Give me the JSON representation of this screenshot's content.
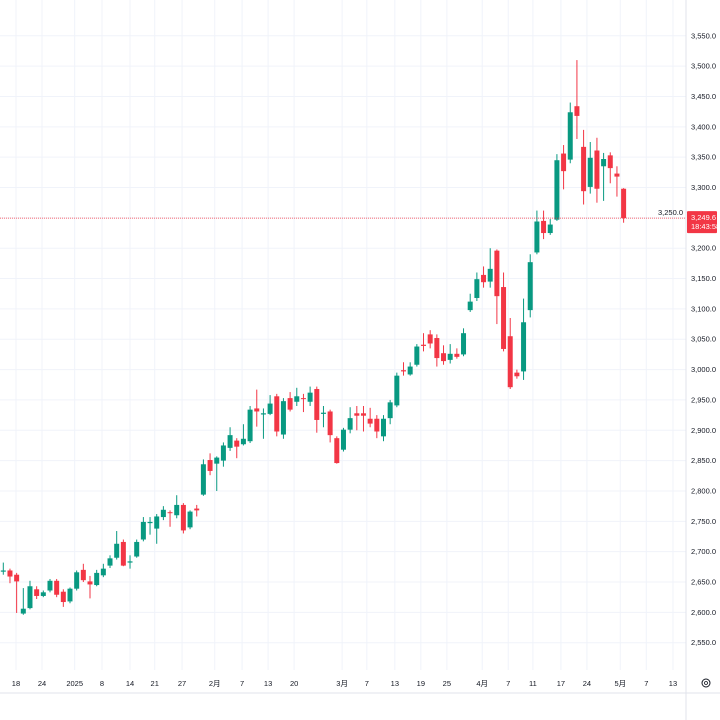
{
  "chart_data": {
    "type": "candlestick",
    "title": "",
    "ylim": [
      2505,
      3609
    ],
    "y_ticks": [
      2550,
      2600,
      2650,
      2700,
      2750,
      2800,
      2850,
      2900,
      2950,
      3000,
      3050,
      3100,
      3150,
      3200,
      3250,
      3300,
      3350,
      3400,
      3450,
      3500,
      3550
    ],
    "y_tick_labels": [
      "2,550.0",
      "2,600.0",
      "2,650.0",
      "2,700.0",
      "2,750.0",
      "2,800.0",
      "2,850.0",
      "2,900.0",
      "2,950.0",
      "3,000.0",
      "3,050.0",
      "3,100.0",
      "3,150.0",
      "3,200.0",
      "3,250.0",
      "3,300.0",
      "3,350.0",
      "3,400.0",
      "3,450.0",
      "3,500.0",
      "3,550.0"
    ],
    "x_tick_labels": [
      "18",
      "24",
      "2025",
      "8",
      "14",
      "21",
      "27",
      "2月",
      "7",
      "13",
      "20",
      "3月",
      "7",
      "13",
      "19",
      "25",
      "4月",
      "7",
      "11",
      "17",
      "24",
      "5月",
      "7",
      "13"
    ],
    "grid": true,
    "colors": {
      "up": "#089981",
      "down": "#f23645",
      "grid": "#f0f3fa",
      "text": "#131722"
    },
    "current_price": {
      "value": 3249.6,
      "label": "3,249.6",
      "countdown": "18:43:58"
    },
    "ohlc": [
      [
        2667,
        2682,
        2662,
        2669
      ],
      [
        2669,
        2672,
        2648,
        2659
      ],
      [
        2662,
        2665,
        2599,
        2651
      ],
      [
        2598,
        2640,
        2596,
        2606
      ],
      [
        2607,
        2652,
        2605,
        2643
      ],
      [
        2638,
        2643,
        2622,
        2627
      ],
      [
        2627,
        2636,
        2625,
        2633
      ],
      [
        2636,
        2655,
        2633,
        2652
      ],
      [
        2652,
        2655,
        2625,
        2629
      ],
      [
        2634,
        2638,
        2609,
        2617
      ],
      [
        2618,
        2641,
        2615,
        2639
      ],
      [
        2639,
        2669,
        2636,
        2666
      ],
      [
        2670,
        2680,
        2650,
        2653
      ],
      [
        2651,
        2660,
        2623,
        2646
      ],
      [
        2645,
        2670,
        2643,
        2665
      ],
      [
        2661,
        2680,
        2658,
        2672
      ],
      [
        2677,
        2694,
        2673,
        2689
      ],
      [
        2690,
        2734,
        2687,
        2713
      ],
      [
        2716,
        2720,
        2676,
        2677
      ],
      [
        2682,
        2694,
        2672,
        2684
      ],
      [
        2692,
        2720,
        2690,
        2716
      ],
      [
        2720,
        2757,
        2717,
        2749
      ],
      [
        2747,
        2757,
        2728,
        2749
      ],
      [
        2738,
        2762,
        2713,
        2758
      ],
      [
        2757,
        2775,
        2752,
        2769
      ],
      [
        2765,
        2768,
        2741,
        2764
      ],
      [
        2760,
        2793,
        2755,
        2777
      ],
      [
        2777,
        2780,
        2730,
        2735
      ],
      [
        2740,
        2768,
        2737,
        2766
      ],
      [
        2771,
        2777,
        2758,
        2768
      ],
      [
        2794,
        2852,
        2792,
        2844
      ],
      [
        2851,
        2862,
        2826,
        2833
      ],
      [
        2845,
        2857,
        2800,
        2855
      ],
      [
        2850,
        2880,
        2840,
        2875
      ],
      [
        2871,
        2905,
        2866,
        2892
      ],
      [
        2883,
        2887,
        2854,
        2873
      ],
      [
        2877,
        2910,
        2875,
        2886
      ],
      [
        2882,
        2940,
        2879,
        2934
      ],
      [
        2936,
        2967,
        2906,
        2931
      ],
      [
        2926,
        2936,
        2886,
        2928
      ],
      [
        2927,
        2958,
        2925,
        2944
      ],
      [
        2956,
        2960,
        2890,
        2898
      ],
      [
        2893,
        2953,
        2886,
        2948
      ],
      [
        2953,
        2963,
        2931,
        2934
      ],
      [
        2947,
        2970,
        2940,
        2956
      ],
      [
        2953,
        2960,
        2930,
        2952
      ],
      [
        2947,
        2972,
        2940,
        2962
      ],
      [
        2968,
        2972,
        2896,
        2917
      ],
      [
        2927,
        2940,
        2905,
        2929
      ],
      [
        2931,
        2934,
        2880,
        2892
      ],
      [
        2887,
        2890,
        2845,
        2846
      ],
      [
        2868,
        2904,
        2865,
        2901
      ],
      [
        2901,
        2938,
        2895,
        2920
      ],
      [
        2928,
        2940,
        2900,
        2924
      ],
      [
        2928,
        2940,
        2898,
        2924
      ],
      [
        2919,
        2937,
        2905,
        2911
      ],
      [
        2919,
        2925,
        2887,
        2898
      ],
      [
        2890,
        2925,
        2882,
        2919
      ],
      [
        2920,
        2950,
        2910,
        2946
      ],
      [
        2941,
        2995,
        2938,
        2990
      ],
      [
        2999,
        3012,
        2990,
        2997
      ],
      [
        2992,
        3012,
        2990,
        3005
      ],
      [
        3008,
        3042,
        3005,
        3038
      ],
      [
        3041,
        3060,
        3030,
        3039
      ],
      [
        3058,
        3065,
        3035,
        3043
      ],
      [
        3052,
        3058,
        3005,
        3019
      ],
      [
        3027,
        3040,
        3008,
        3014
      ],
      [
        3016,
        3042,
        3010,
        3026
      ],
      [
        3026,
        3035,
        3018,
        3021
      ],
      [
        3025,
        3068,
        3022,
        3060
      ],
      [
        3098,
        3125,
        3095,
        3112
      ],
      [
        3118,
        3160,
        3113,
        3149
      ],
      [
        3156,
        3170,
        3135,
        3144
      ],
      [
        3145,
        3200,
        3135,
        3166
      ],
      [
        3196,
        3198,
        3075,
        3121
      ],
      [
        3136,
        3160,
        3030,
        3034
      ],
      [
        3055,
        3085,
        2968,
        2971
      ],
      [
        2995,
        3000,
        2985,
        2989
      ],
      [
        2997,
        3117,
        2983,
        3078
      ],
      [
        3098,
        3190,
        3086,
        3177
      ],
      [
        3193,
        3262,
        3190,
        3244
      ],
      [
        3245,
        3262,
        3215,
        3225
      ],
      [
        3225,
        3248,
        3222,
        3239
      ],
      [
        3247,
        3355,
        3245,
        3345
      ],
      [
        3356,
        3370,
        3297,
        3327
      ],
      [
        3346,
        3440,
        3340,
        3424
      ],
      [
        3434,
        3510,
        3380,
        3418
      ],
      [
        3367,
        3395,
        3272,
        3294
      ],
      [
        3301,
        3375,
        3290,
        3349
      ],
      [
        3361,
        3382,
        3275,
        3298
      ],
      [
        3335,
        3357,
        3278,
        3347
      ],
      [
        3353,
        3358,
        3307,
        3332
      ],
      [
        3323,
        3335,
        3285,
        3318
      ],
      [
        3298,
        3299,
        3242,
        3249.6
      ]
    ]
  },
  "icons": {
    "settings": "gear-icon"
  }
}
